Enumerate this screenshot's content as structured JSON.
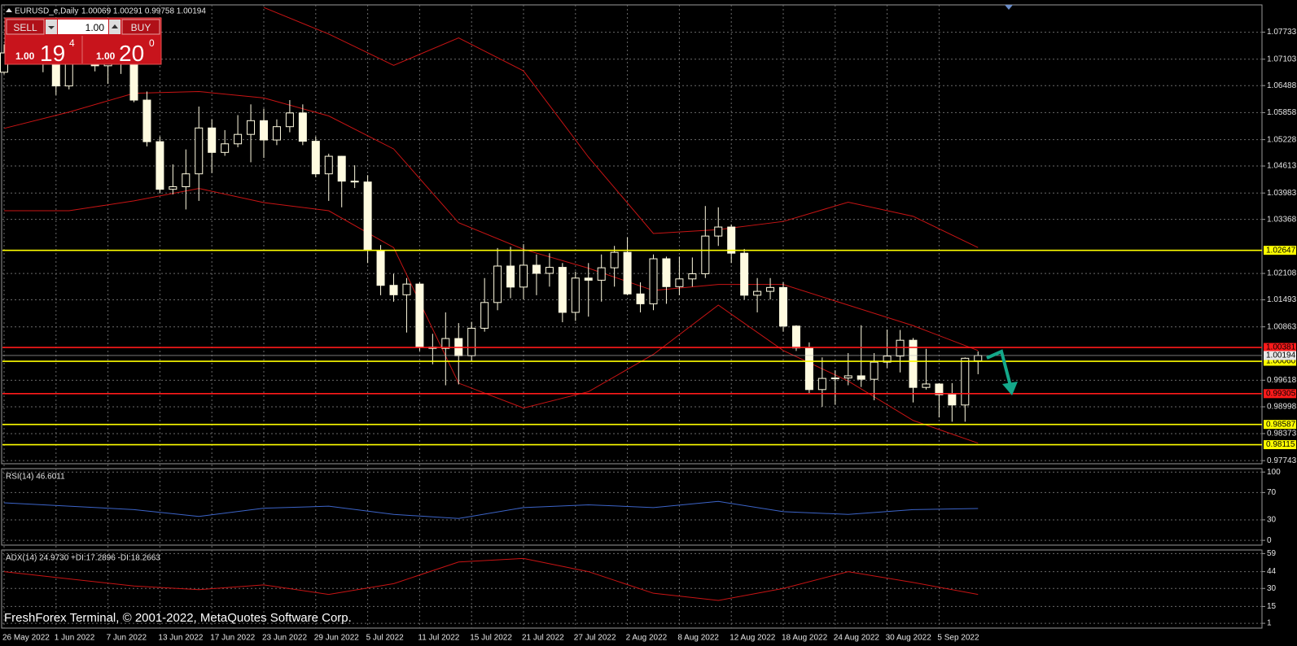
{
  "trade_panel": {
    "sell": "SELL",
    "buy": "BUY",
    "lot": "1.00",
    "sell_lot": "1.00",
    "sell_big": "19",
    "sell_sup": "4",
    "buy_lot": "1.00",
    "buy_big": "20",
    "buy_sup": "0"
  },
  "chart_data": [
    {
      "type": "candlestick",
      "title": "EURUSD_e,Daily",
      "subtitle": "1.00069 1.00291 0.99758 1.00194",
      "categories": [
        "26 May 2022",
        null,
        null,
        null,
        "1 Jun 2022",
        null,
        null,
        null,
        "7 Jun 2022",
        null,
        null,
        null,
        "13 Jun 2022",
        null,
        null,
        null,
        "17 Jun 2022",
        null,
        null,
        null,
        "23 Jun 2022",
        null,
        null,
        null,
        "29 Jun 2022",
        null,
        null,
        null,
        "5 Jul 2022",
        null,
        null,
        null,
        "11 Jul 2022",
        null,
        null,
        null,
        "15 Jul 2022",
        null,
        null,
        null,
        "21 Jul 2022",
        null,
        null,
        null,
        "27 Jul 2022",
        null,
        null,
        null,
        "2 Aug 2022",
        null,
        null,
        null,
        "8 Aug 2022",
        null,
        null,
        null,
        "12 Aug 2022",
        null,
        null,
        null,
        "18 Aug 2022",
        null,
        null,
        null,
        "24 Aug 2022",
        null,
        null,
        null,
        "30 Aug 2022",
        null,
        null,
        null,
        "5 Sep 2022",
        null,
        null,
        null
      ],
      "ohlc": [
        [
          1.068,
          1.0745,
          1.0675,
          1.0725
        ],
        [
          1.0725,
          1.0765,
          1.0705,
          1.0733
        ],
        [
          1.0733,
          1.0787,
          1.072,
          1.078
        ],
        [
          1.078,
          1.0785,
          1.068,
          1.0733
        ],
        [
          1.0733,
          1.0745,
          1.0627,
          1.0648
        ],
        [
          1.0648,
          1.0765,
          1.064,
          1.075
        ],
        [
          1.075,
          1.0765,
          1.07,
          1.0718
        ],
        [
          1.0718,
          1.0752,
          1.0682,
          1.0695
        ],
        [
          1.0695,
          1.071,
          1.0653,
          1.07
        ],
        [
          1.07,
          1.0748,
          1.0676,
          1.0715
        ],
        [
          1.0715,
          1.0774,
          1.061,
          1.0615
        ],
        [
          1.0615,
          1.0635,
          1.0507,
          1.0518
        ],
        [
          1.0518,
          1.053,
          1.0398,
          1.0407
        ],
        [
          1.0407,
          1.0465,
          1.0395,
          1.0413
        ],
        [
          1.0413,
          1.05,
          1.036,
          1.0443
        ],
        [
          1.0443,
          1.06,
          1.038,
          1.055
        ],
        [
          1.055,
          1.057,
          1.0445,
          1.0493
        ],
        [
          1.0493,
          1.0545,
          1.0485,
          1.0513
        ],
        [
          1.0513,
          1.058,
          1.0505,
          1.0535
        ],
        [
          1.0535,
          1.0605,
          1.047,
          1.0567
        ],
        [
          1.0567,
          1.0595,
          1.048,
          1.0522
        ],
        [
          1.0522,
          1.057,
          1.051,
          1.0553
        ],
        [
          1.0553,
          1.0615,
          1.054,
          1.0585
        ],
        [
          1.0585,
          1.0605,
          1.051,
          1.0519
        ],
        [
          1.0519,
          1.053,
          1.0435,
          1.0443
        ],
        [
          1.0443,
          1.049,
          1.038,
          1.0484
        ],
        [
          1.0484,
          1.0485,
          1.0365,
          1.0426
        ],
        [
          1.0426,
          1.0463,
          1.041,
          1.0424
        ],
        [
          1.0424,
          1.044,
          1.0235,
          1.0265
        ],
        [
          1.0265,
          1.0277,
          1.016,
          1.0183
        ],
        [
          1.0183,
          1.021,
          1.0145,
          1.0161
        ],
        [
          1.0161,
          1.02,
          1.0073,
          1.0186
        ],
        [
          1.0186,
          1.019,
          1.003,
          1.0039
        ],
        [
          1.0039,
          1.007,
          0.9999,
          1.0036
        ],
        [
          1.0036,
          1.012,
          0.995,
          1.0059
        ],
        [
          1.0059,
          1.0095,
          0.9952,
          1.0019
        ],
        [
          1.0019,
          1.0098,
          1.0005,
          1.0083
        ],
        [
          1.0083,
          1.02,
          1.0075,
          1.0143
        ],
        [
          1.0143,
          1.027,
          1.0125,
          1.0228
        ],
        [
          1.0228,
          1.0273,
          1.0153,
          1.0179
        ],
        [
          1.0179,
          1.0279,
          1.015,
          1.023
        ],
        [
          1.023,
          1.0255,
          1.016,
          1.0211
        ],
        [
          1.0211,
          1.0258,
          1.018,
          1.0225
        ],
        [
          1.0225,
          1.0235,
          1.0097,
          1.012
        ],
        [
          1.012,
          1.0215,
          1.01,
          1.02
        ],
        [
          1.02,
          1.0235,
          1.011,
          1.0195
        ],
        [
          1.0195,
          1.0255,
          1.0145,
          1.0224
        ],
        [
          1.0224,
          1.0275,
          1.018,
          1.026
        ],
        [
          1.026,
          1.0295,
          1.016,
          1.0163
        ],
        [
          1.0163,
          1.019,
          1.012,
          1.014
        ],
        [
          1.014,
          1.0255,
          1.0125,
          1.0245
        ],
        [
          1.0245,
          1.025,
          1.014,
          1.018
        ],
        [
          1.018,
          1.025,
          1.016,
          1.0198
        ],
        [
          1.0198,
          1.0248,
          1.018,
          1.021
        ],
        [
          1.021,
          1.0368,
          1.02,
          1.0298
        ],
        [
          1.0298,
          1.0365,
          1.0275,
          1.0319
        ],
        [
          1.0319,
          1.0325,
          1.0235,
          1.0258
        ],
        [
          1.0258,
          1.0268,
          1.015,
          1.016
        ],
        [
          1.016,
          1.02,
          1.012,
          1.0169
        ],
        [
          1.0169,
          1.02,
          1.015,
          1.0178
        ],
        [
          1.0178,
          1.019,
          1.0075,
          1.0088
        ],
        [
          1.0088,
          1.009,
          1.003,
          1.0037
        ],
        [
          1.0037,
          1.005,
          0.993,
          0.994
        ],
        [
          0.994,
          1.0015,
          0.99,
          0.9966
        ],
        [
          0.9966,
          0.9985,
          0.9905,
          0.9967
        ],
        [
          0.9967,
          1.0025,
          0.995,
          0.9972
        ],
        [
          0.9972,
          1.009,
          0.9946,
          0.9964
        ],
        [
          0.9964,
          1.0025,
          0.9915,
          1.0004
        ],
        [
          1.0004,
          1.008,
          0.999,
          1.0018
        ],
        [
          1.0018,
          1.0079,
          0.998,
          1.0055
        ],
        [
          1.0055,
          1.006,
          0.991,
          0.9945
        ],
        [
          0.9945,
          1.0035,
          0.994,
          0.9953
        ],
        [
          0.9953,
          0.9955,
          0.9875,
          0.9928
        ],
        [
          0.9928,
          0.9955,
          0.9865,
          0.9904
        ],
        [
          0.9904,
          1.0015,
          0.9865,
          1.0013
        ],
        [
          1.00069,
          1.00291,
          0.99758,
          1.00194
        ]
      ],
      "bull_color": "#000000",
      "bear_color": "#fffbe0",
      "ylim": [
        0.9767,
        1.0837
      ],
      "yticks": [
        1.07733,
        1.07103,
        1.06488,
        1.05858,
        1.05228,
        1.04613,
        1.03983,
        1.03368,
        1.02108,
        1.01493,
        1.00863,
        0.99618,
        0.98998,
        0.98373,
        0.97743
      ],
      "grid": true,
      "bands": [
        {
          "color": "#c81414",
          "x": [
            20,
            25,
            30,
            35,
            40,
            45,
            50,
            55,
            60,
            65,
            70,
            75
          ],
          "values": [
            1.0831,
            1.0769,
            1.0696,
            1.076,
            1.0683,
            1.0482,
            1.0304,
            1.0313,
            1.0332,
            1.0377,
            1.0344,
            1.0271
          ]
        },
        {
          "color": "#c81414",
          "x": [
            0,
            5,
            10,
            15,
            20,
            25,
            30,
            35,
            40,
            45,
            50,
            55,
            60,
            65,
            70,
            75
          ],
          "values": [
            1.0549,
            1.0587,
            1.0631,
            1.0635,
            1.062,
            1.0578,
            1.0501,
            1.0329,
            1.0267,
            1.0223,
            1.0171,
            1.0185,
            1.0185,
            1.0137,
            1.0089,
            1.0031
          ]
        },
        {
          "color": "#c81414",
          "x": [
            0,
            5,
            10,
            15,
            20,
            25,
            30,
            35,
            40,
            45,
            50,
            55,
            60,
            65,
            70,
            75
          ],
          "values": [
            1.0357,
            1.0357,
            1.038,
            1.0409,
            1.0376,
            1.0357,
            1.0271,
            0.9955,
            0.9897,
            0.9935,
            1.0022,
            1.0137,
            1.0031,
            0.996,
            0.9868,
            0.9815
          ]
        }
      ],
      "levels": [
        {
          "value": 1.02647,
          "color": "#ffff00"
        },
        {
          "value": 1.00381,
          "color": "#ff1a1a"
        },
        {
          "value": 1.0006,
          "label": "1.00060",
          "color": "#ffff00"
        },
        {
          "value": 0.99305,
          "color": "#ff1a1a"
        },
        {
          "value": 0.98587,
          "color": "#ffff00"
        },
        {
          "value": 0.98115,
          "color": "#ffff00"
        }
      ],
      "bid": 1.00194
    },
    {
      "type": "line",
      "title": "RSI(14) 46.6011",
      "x": [
        0,
        5,
        10,
        15,
        20,
        25,
        30,
        35,
        40,
        45,
        50,
        55,
        60,
        65,
        70,
        75
      ],
      "series": [
        {
          "color": "#3c64c8",
          "values": [
            55,
            50,
            45,
            35,
            47,
            50,
            38,
            32,
            48,
            52,
            48,
            57,
            42,
            38,
            45,
            46.6
          ]
        }
      ],
      "ylim": [
        -7,
        105
      ],
      "yticks": [
        100,
        70,
        30,
        0
      ]
    },
    {
      "type": "line",
      "title": "ADX(14) 24.9730 +DI:17.2896 -DI:18.2663",
      "x": [
        0,
        5,
        10,
        15,
        20,
        25,
        30,
        35,
        40,
        45,
        50,
        55,
        60,
        65,
        70,
        75
      ],
      "series": [
        {
          "color": "#c81414",
          "values": [
            44,
            38,
            32,
            29,
            33,
            25,
            34,
            52,
            55,
            44,
            26,
            20,
            30,
            44,
            35,
            25
          ]
        }
      ],
      "ylim": [
        -3,
        62
      ],
      "yticks": [
        59,
        44,
        30,
        15,
        1
      ],
      "footer": "FreshForex Terminal, © 2001-2022, MetaQuotes Software Corp."
    }
  ]
}
